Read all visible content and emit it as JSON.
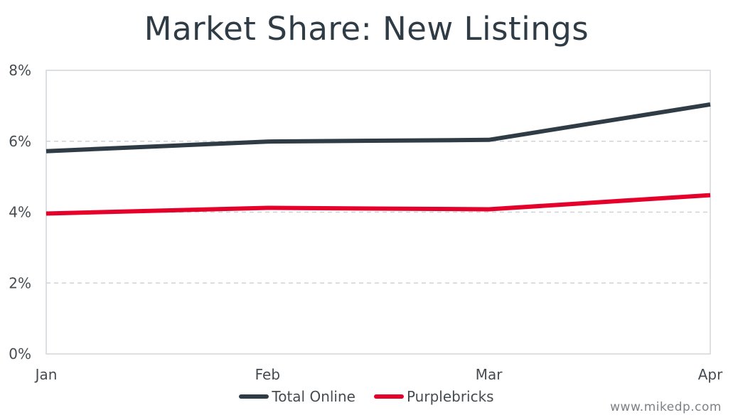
{
  "chart_data": {
    "type": "line",
    "title": "Market Share: New Listings",
    "categories": [
      "Jan",
      "Feb",
      "Mar",
      "Apr"
    ],
    "y_ticks": [
      "0%",
      "2%",
      "4%",
      "6%",
      "8%"
    ],
    "ylim": [
      0,
      8
    ],
    "ytick_values": [
      0,
      2,
      4,
      6,
      8
    ],
    "grid": "horizontal dashed",
    "legend_position": "bottom",
    "series": [
      {
        "name": "Total Online",
        "color": "#2f3c45",
        "values": [
          5.72,
          5.99,
          6.04,
          7.04
        ]
      },
      {
        "name": "Purplebricks",
        "color": "#e4002b",
        "values": [
          3.96,
          4.12,
          4.08,
          4.48
        ]
      }
    ]
  },
  "watermark": "www.mikedp.com"
}
